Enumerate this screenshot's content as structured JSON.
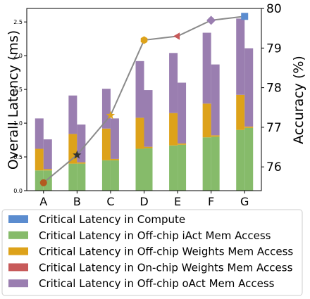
{
  "chart_data": {
    "type": "bar",
    "categories": [
      "A",
      "B",
      "C",
      "D",
      "E",
      "F",
      "G"
    ],
    "ylabel": "Overall Latency (ms)",
    "ylabel_right": "Accuracy (%)",
    "ylim": [
      0,
      2.7
    ],
    "yticks": [
      "0.0",
      "0.5",
      "1.0",
      "1.5",
      "2.0",
      "2.5"
    ],
    "ylim_right": [
      75.4,
      80.0
    ],
    "yticks_right": [
      "76",
      "77",
      "78",
      "79",
      "80"
    ],
    "legend_position": "bottom",
    "colors": {
      "compute": "#5b8ccf",
      "iact": "#86bb6a",
      "weights": "#dda21a",
      "onchip": "#c75a5a",
      "oact": "#9a7eb0",
      "line": "#8a8a8a"
    },
    "series": [
      {
        "key": "compute",
        "name": "Critical Latency in Compute",
        "left": [
          0,
          0,
          0,
          0,
          0,
          0,
          0
        ],
        "right": [
          0,
          0,
          0,
          0,
          0,
          0,
          0
        ]
      },
      {
        "key": "iact",
        "name": "Critical Latency in Off-chip iAct Mem Access",
        "left": [
          0.3,
          0.4,
          0.45,
          0.62,
          0.67,
          0.79,
          0.9
        ],
        "right": [
          0.3,
          0.4,
          0.45,
          0.63,
          0.68,
          0.8,
          0.93
        ]
      },
      {
        "key": "weights",
        "name": "Critical Latency in Off-chip Weights Mem Access",
        "left": [
          0.32,
          0.44,
          0.47,
          0.46,
          0.48,
          0.5,
          0.52
        ],
        "right": [
          0.02,
          0.02,
          0.02,
          0.02,
          0.02,
          0.02,
          0.02
        ]
      },
      {
        "key": "onchip",
        "name": "Critical Latency in On-chip Weights Mem Access",
        "left": [
          0,
          0,
          0,
          0,
          0,
          0,
          0
        ],
        "right": [
          0,
          0,
          0,
          0,
          0,
          0,
          0
        ]
      },
      {
        "key": "oact",
        "name": "Critical Latency in Off-chip oAct Mem Access",
        "left": [
          0.45,
          0.57,
          0.59,
          0.84,
          0.89,
          1.05,
          1.13
        ],
        "right": [
          0.44,
          0.56,
          0.6,
          0.84,
          0.9,
          1.05,
          1.16
        ]
      }
    ],
    "accuracy": [
      {
        "category": "A",
        "value": 75.6,
        "marker": "circle",
        "color": "#b35a1f"
      },
      {
        "category": "B",
        "value": 76.3,
        "marker": "star",
        "color": "#333333"
      },
      {
        "category": "C",
        "value": 77.3,
        "marker": "star",
        "color": "#dda21a"
      },
      {
        "category": "D",
        "value": 79.2,
        "marker": "hexagon",
        "color": "#dda21a"
      },
      {
        "category": "E",
        "value": 79.3,
        "marker": "triangle",
        "color": "#c75a5a"
      },
      {
        "category": "F",
        "value": 79.7,
        "marker": "diamond",
        "color": "#9a7eb0"
      },
      {
        "category": "G",
        "value": 79.8,
        "marker": "square",
        "color": "#5b8ccf"
      }
    ]
  }
}
